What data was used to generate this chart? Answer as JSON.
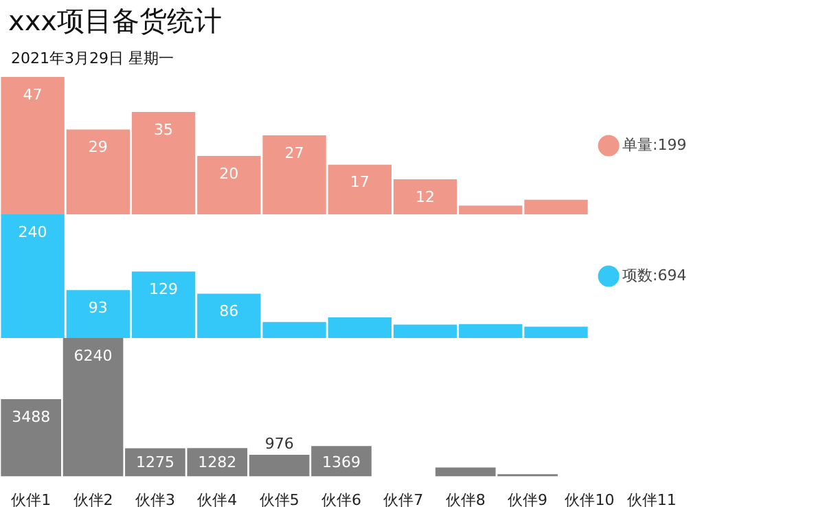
{
  "chart_data": [
    {
      "type": "bar",
      "title": "xxx项目备货统计",
      "subtitle": "2021年3月29日 星期一",
      "categories": [
        null,
        null,
        null,
        null,
        null,
        null,
        null,
        null,
        null
      ],
      "series": [
        {
          "name": "单量:199",
          "color": "#f0998a",
          "values": [
            47,
            29,
            35,
            20,
            27,
            17,
            12,
            3,
            5
          ],
          "value_labels": [
            "47",
            "29",
            "35",
            "20",
            "27",
            "17",
            "12",
            null,
            null
          ]
        }
      ],
      "legend": "right",
      "tick_labels": false
    },
    {
      "type": "bar",
      "categories": [
        null,
        null,
        null,
        null,
        null,
        null,
        null,
        null,
        null
      ],
      "series": [
        {
          "name": "项数:694",
          "color": "#33c8f8",
          "values": [
            240,
            93,
            129,
            86,
            31,
            40,
            26,
            27,
            22
          ],
          "value_labels": [
            "240",
            "93",
            "129",
            "86",
            null,
            null,
            null,
            null,
            null
          ]
        }
      ],
      "legend": "right",
      "tick_labels": false
    },
    {
      "type": "bar",
      "categories": [
        "伙伴1",
        "伙伴2",
        "伙伴3",
        "伙伴4",
        "伙伴5",
        "伙伴6",
        "伙伴7",
        "伙伴8",
        "伙伴9",
        "伙伴10",
        "伙伴11"
      ],
      "series": [
        {
          "color": "#808080",
          "values": [
            3488,
            6240,
            1275,
            1282,
            976,
            1369,
            null,
            405,
            100,
            null,
            null
          ],
          "value_labels": [
            "3488",
            "6240",
            "1275",
            "1282",
            "976",
            "1369",
            null,
            null,
            null,
            null,
            null
          ]
        }
      ],
      "tick_labels": "x"
    }
  ]
}
